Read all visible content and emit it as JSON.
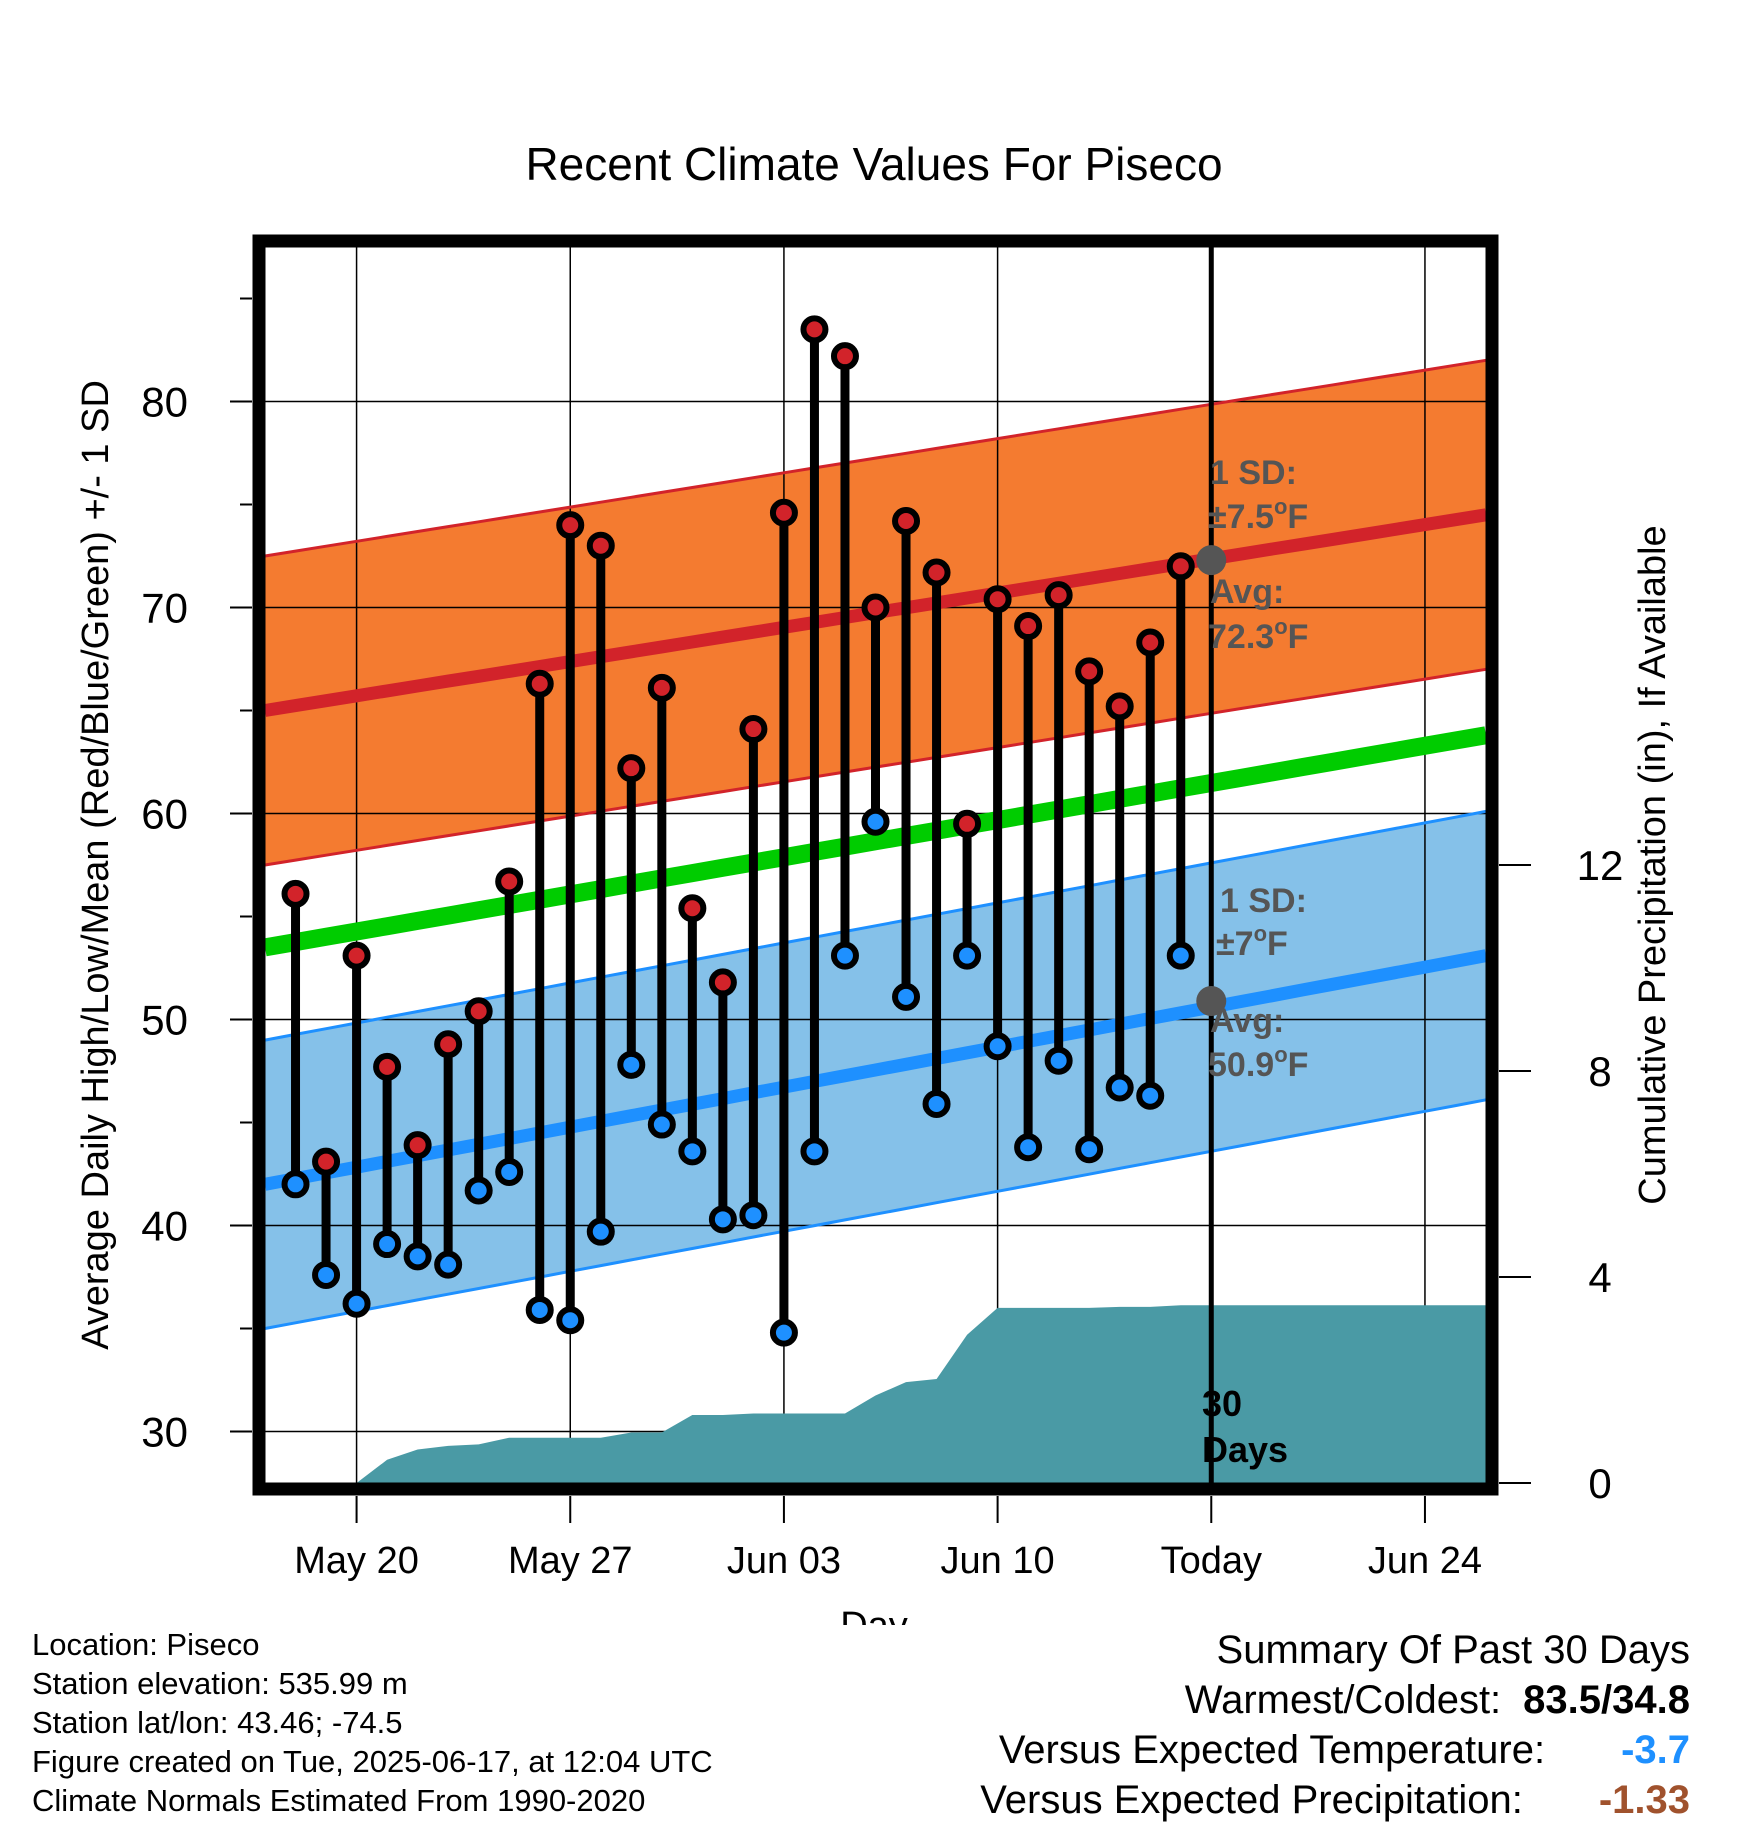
{
  "chart_data": {
    "type": "line",
    "title": "Recent Climate Values For Piseco",
    "xlabel": "Day",
    "ylabel_left": "Average Daily High/Low/Mean (Red/Blue/Green) +/- 1 SD",
    "ylabel_right": "Cumulative Precipitation (in), If Available",
    "ylim_left": [
      27.5,
      87.5
    ],
    "ylim_right": [
      0,
      24
    ],
    "y_ticks_left": [
      30,
      40,
      50,
      60,
      70,
      80
    ],
    "y_ticks_right": [
      0,
      4,
      8,
      12
    ],
    "x_tick_labels": [
      "May 20",
      "May 27",
      "Jun 03",
      "Jun 10",
      "Today",
      "Jun 24"
    ],
    "x_day_range": [
      "2025-05-17",
      "2025-06-26"
    ],
    "today": "2025-06-17",
    "grid": true,
    "days": [
      "May 18",
      "May 19",
      "May 20",
      "May 21",
      "May 22",
      "May 23",
      "May 24",
      "May 25",
      "May 26",
      "May 27",
      "May 28",
      "May 29",
      "May 30",
      "May 31",
      "Jun 01",
      "Jun 02",
      "Jun 03",
      "Jun 04",
      "Jun 05",
      "Jun 06",
      "Jun 07",
      "Jun 08",
      "Jun 09",
      "Jun 10",
      "Jun 11",
      "Jun 12",
      "Jun 13",
      "Jun 14",
      "Jun 15",
      "Jun 16"
    ],
    "daily_high": [
      56.1,
      43.1,
      53.1,
      47.7,
      43.9,
      48.8,
      50.4,
      56.7,
      66.3,
      74.0,
      73.0,
      62.2,
      66.1,
      55.4,
      51.8,
      64.1,
      74.6,
      83.5,
      82.2,
      70.0,
      74.2,
      71.7,
      59.5,
      70.4,
      69.1,
      70.6,
      66.9,
      65.2,
      68.3,
      72.0
    ],
    "daily_low": [
      42.0,
      37.6,
      36.2,
      39.1,
      38.5,
      38.1,
      41.7,
      42.6,
      35.9,
      35.4,
      39.7,
      47.8,
      44.9,
      43.6,
      40.3,
      40.5,
      34.8,
      43.6,
      53.1,
      59.6,
      51.1,
      45.9,
      53.1,
      48.7,
      43.8,
      48.0,
      43.7,
      46.7,
      46.3,
      53.1
    ],
    "normal_high": {
      "start": 65.0,
      "end": 74.5,
      "today": 72.3
    },
    "normal_low": {
      "start": 42.0,
      "end": 53.1,
      "today": 50.9
    },
    "normal_mean": {
      "start": 53.5,
      "end": 63.8
    },
    "sd_high": 7.5,
    "sd_low": 7,
    "precip_cumulative": [
      0,
      0,
      0,
      0.45,
      0.65,
      0.72,
      0.75,
      0.88,
      0.88,
      0.88,
      0.88,
      0.98,
      0.98,
      1.32,
      1.32,
      1.35,
      1.35,
      1.35,
      1.35,
      1.7,
      1.96,
      2.02,
      2.88,
      3.4,
      3.4,
      3.4,
      3.4,
      3.42,
      3.42,
      3.45
    ],
    "precip_total": 3.45,
    "colors": {
      "high_band": "#f47b30",
      "high_line": "#d2232a",
      "low_band": "#85c1e9",
      "low_line": "#1e90ff",
      "mean_line": "#00cc00",
      "precip": "#4a9aa5",
      "high_dot": "#d2232a",
      "low_dot": "#1e90ff",
      "annotation": "#555555"
    }
  },
  "annotations": {
    "high_sd_label": "1 SD:",
    "high_sd_value": "±7.5",
    "high_avg_label": "Avg:",
    "high_avg_value": "72.3",
    "low_sd_label": "1 SD:",
    "low_sd_value": "±7",
    "low_avg_label": "Avg:",
    "low_avg_value": "50.9",
    "degree_unit": "o",
    "temp_unit": "F",
    "days_count": "30",
    "days_word": "Days"
  },
  "info": {
    "location": "Location: Piseco",
    "elevation": "Station elevation: 535.99 m",
    "latlon": "Station lat/lon: 43.46; -74.5",
    "created": "Figure created on Tue, 2025-06-17, at 12:04 UTC",
    "normals": "Climate Normals Estimated From 1990-2020"
  },
  "summary": {
    "title": "Summary Of Past 30 Days",
    "warm_cold_label": "Warmest/Coldest:",
    "warm_cold_value": "83.5/34.8",
    "temp_label": "Versus Expected Temperature:",
    "temp_value": "-3.7",
    "precip_label": "Versus Expected Precipitation:",
    "precip_value": "-1.33"
  }
}
